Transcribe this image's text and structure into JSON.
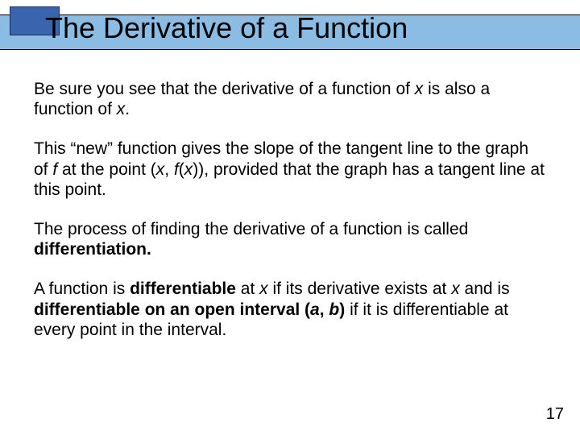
{
  "title": "The Derivative of a Function",
  "para1_a": "Be sure you see that the derivative of a function of ",
  "para1_b": " is also a function of ",
  "para1_c": ".",
  "x": "x",
  "para2_a": "This “new” function gives the slope of the tangent line to the graph of ",
  "f": "f",
  "para2_b": " at the point (",
  "comma_sp": ", ",
  "lparen": "(",
  "rparen_rparen": ")), provided that the graph has a tangent line at this point.",
  "para3_a": "The process of finding the derivative of a function is called ",
  "differentiation": "differentiation.",
  "para4_a": "A function is ",
  "differentiable": "differentiable",
  "para4_b": " at ",
  "para4_c": " if its derivative exists at ",
  "para4_d": " and is ",
  "diff_open_interval": "differentiable on an open interval (",
  "a": "a",
  "b": "b",
  "rparen": ")",
  "para4_e": " if it is differentiable at every point in the interval.",
  "page_number": "17",
  "colors": {
    "title_bar": "#8bbce4",
    "accent": "#3a64ad",
    "background": "#ffffff",
    "text": "#000000"
  },
  "font_sizes": {
    "title": 36,
    "body": 21,
    "page_number": 20
  }
}
